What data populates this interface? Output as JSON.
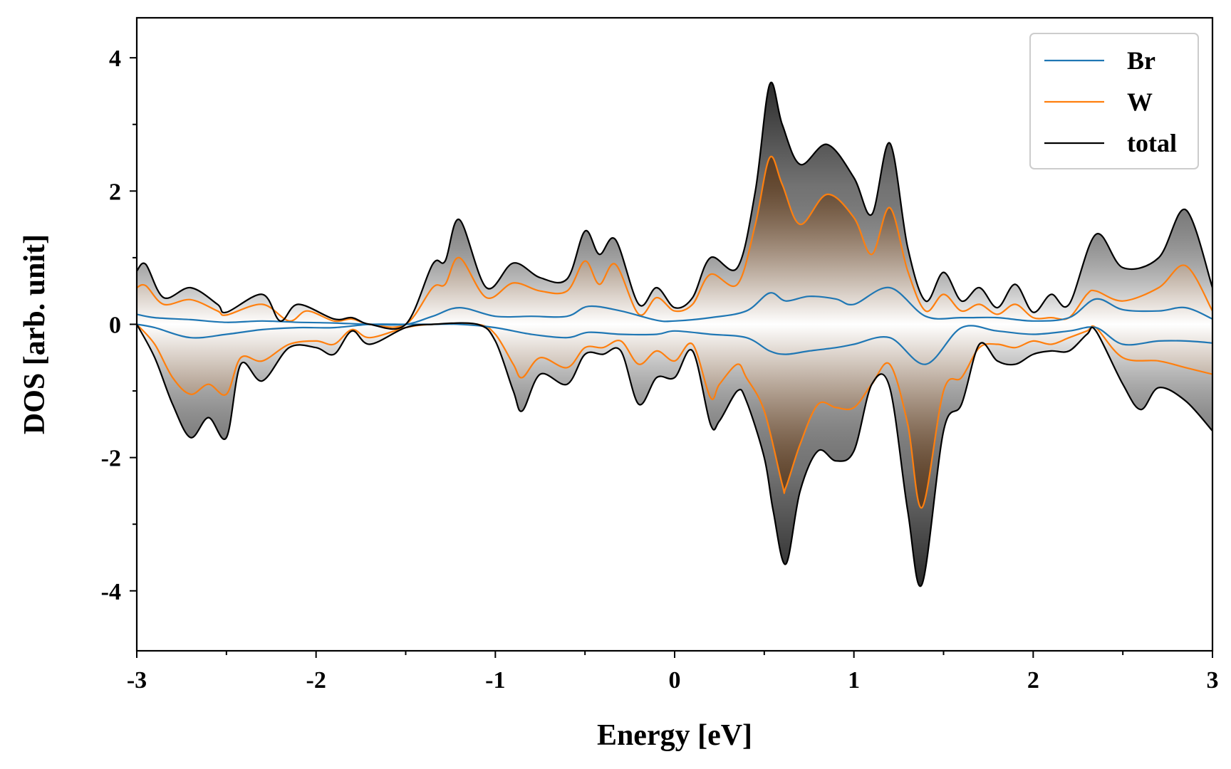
{
  "chart_data": {
    "type": "line",
    "title": "",
    "xlabel": "Energy [eV]",
    "ylabel": "DOS [arb. unit]",
    "xlim": [
      -3,
      3
    ],
    "ylim": [
      -4.9,
      4.6
    ],
    "xticks": [
      -3,
      -2,
      -1,
      0,
      1,
      2,
      3
    ],
    "yticks": [
      -4,
      -2,
      0,
      2,
      4
    ],
    "xtick_labels": [
      "-3",
      "-2",
      "-1",
      "0",
      "1",
      "2",
      "3"
    ],
    "ytick_labels": [
      "-4",
      "-2",
      "0",
      "2",
      "4"
    ],
    "grid": false,
    "legend_position": "top-right",
    "legend": [
      "Br",
      "W",
      "total"
    ],
    "colors": {
      "Br": "#1f77b4",
      "W": "#ff7f0e",
      "total": "#000000",
      "W_fill_dark": "#5a2a00",
      "total_fill_dark": "#000000"
    },
    "series": [
      {
        "name": "Br",
        "spin": "up",
        "x": [
          -3,
          -2.9,
          -2.7,
          -2.5,
          -2.3,
          -2.1,
          -1.9,
          -1.7,
          -1.5,
          -1.35,
          -1.2,
          -1.0,
          -0.8,
          -0.6,
          -0.48,
          -0.3,
          -0.1,
          0,
          0.2,
          0.4,
          0.53,
          0.62,
          0.75,
          0.9,
          1.0,
          1.2,
          1.4,
          1.6,
          1.8,
          2.0,
          2.2,
          2.35,
          2.5,
          2.7,
          2.85,
          3.0
        ],
        "y": [
          0.15,
          0.1,
          0.07,
          0.03,
          0.05,
          0.03,
          0.02,
          0.0,
          0.0,
          0.12,
          0.25,
          0.12,
          0.12,
          0.12,
          0.27,
          0.2,
          0.06,
          0.05,
          0.1,
          0.2,
          0.47,
          0.35,
          0.42,
          0.38,
          0.3,
          0.55,
          0.12,
          0.1,
          0.1,
          0.05,
          0.1,
          0.38,
          0.22,
          0.2,
          0.25,
          0.08
        ]
      },
      {
        "name": "Br",
        "spin": "down",
        "x": [
          -3,
          -2.9,
          -2.7,
          -2.5,
          -2.3,
          -2.1,
          -1.9,
          -1.7,
          -1.5,
          -1.35,
          -1.2,
          -1.0,
          -0.8,
          -0.6,
          -0.48,
          -0.3,
          -0.1,
          0,
          0.2,
          0.4,
          0.53,
          0.62,
          0.75,
          0.9,
          1.0,
          1.2,
          1.4,
          1.6,
          1.8,
          2.0,
          2.2,
          2.35,
          2.5,
          2.7,
          2.85,
          3.0
        ],
        "y": [
          0.0,
          -0.05,
          -0.2,
          -0.15,
          -0.08,
          -0.05,
          -0.05,
          0.0,
          0.0,
          0.0,
          0.0,
          -0.05,
          -0.15,
          -0.2,
          -0.12,
          -0.15,
          -0.15,
          -0.1,
          -0.15,
          -0.2,
          -0.4,
          -0.45,
          -0.4,
          -0.35,
          -0.3,
          -0.2,
          -0.6,
          -0.05,
          -0.1,
          -0.15,
          -0.1,
          -0.05,
          -0.3,
          -0.25,
          -0.25,
          -0.28
        ]
      },
      {
        "name": "W",
        "spin": "up",
        "x": [
          -3,
          -2.95,
          -2.85,
          -2.7,
          -2.55,
          -2.5,
          -2.3,
          -2.15,
          -2.05,
          -1.9,
          -1.8,
          -1.7,
          -1.5,
          -1.35,
          -1.28,
          -1.2,
          -1.05,
          -0.9,
          -0.75,
          -0.6,
          -0.5,
          -0.42,
          -0.33,
          -0.2,
          -0.1,
          0.0,
          0.1,
          0.2,
          0.35,
          0.45,
          0.53,
          0.6,
          0.7,
          0.85,
          1.0,
          1.1,
          1.2,
          1.3,
          1.4,
          1.5,
          1.6,
          1.7,
          1.8,
          1.9,
          2.0,
          2.1,
          2.2,
          2.3,
          2.35,
          2.5,
          2.7,
          2.85,
          3.0
        ],
        "y": [
          0.55,
          0.58,
          0.3,
          0.37,
          0.2,
          0.14,
          0.3,
          0.05,
          0.2,
          0.05,
          0.08,
          0.0,
          0.0,
          0.55,
          0.6,
          1.0,
          0.4,
          0.62,
          0.5,
          0.5,
          0.95,
          0.6,
          0.9,
          0.15,
          0.4,
          0.2,
          0.3,
          0.75,
          0.6,
          1.5,
          2.5,
          2.1,
          1.5,
          1.95,
          1.6,
          1.05,
          1.75,
          0.8,
          0.2,
          0.45,
          0.2,
          0.3,
          0.15,
          0.3,
          0.1,
          0.1,
          0.1,
          0.45,
          0.5,
          0.35,
          0.55,
          0.88,
          0.2
        ]
      },
      {
        "name": "W",
        "spin": "down",
        "x": [
          -3,
          -2.9,
          -2.8,
          -2.7,
          -2.6,
          -2.5,
          -2.42,
          -2.3,
          -2.15,
          -2.0,
          -1.9,
          -1.8,
          -1.7,
          -1.5,
          -1.35,
          -1.1,
          -1.0,
          -0.9,
          -0.85,
          -0.75,
          -0.6,
          -0.5,
          -0.4,
          -0.3,
          -0.2,
          -0.1,
          0.0,
          0.1,
          0.2,
          0.25,
          0.35,
          0.4,
          0.5,
          0.6,
          0.62,
          0.7,
          0.8,
          0.9,
          1.0,
          1.1,
          1.2,
          1.3,
          1.38,
          1.5,
          1.6,
          1.7,
          1.8,
          1.9,
          2.0,
          2.1,
          2.2,
          2.3,
          2.35,
          2.5,
          2.7,
          2.85,
          3.0
        ],
        "y": [
          0.0,
          -0.3,
          -0.8,
          -1.05,
          -0.9,
          -1.05,
          -0.5,
          -0.55,
          -0.3,
          -0.25,
          -0.3,
          -0.08,
          -0.2,
          -0.05,
          0.0,
          0.0,
          -0.15,
          -0.6,
          -0.8,
          -0.5,
          -0.65,
          -0.35,
          -0.35,
          -0.25,
          -0.6,
          -0.4,
          -0.55,
          -0.3,
          -1.1,
          -0.9,
          -0.6,
          -0.8,
          -1.3,
          -2.4,
          -2.45,
          -1.8,
          -1.2,
          -1.25,
          -1.25,
          -0.9,
          -0.6,
          -1.5,
          -2.75,
          -1.0,
          -0.8,
          -0.35,
          -0.3,
          -0.35,
          -0.25,
          -0.3,
          -0.2,
          -0.1,
          -0.05,
          -0.5,
          -0.55,
          -0.65,
          -0.75
        ]
      },
      {
        "name": "total",
        "spin": "up",
        "x": [
          -3,
          -2.95,
          -2.85,
          -2.7,
          -2.55,
          -2.5,
          -2.3,
          -2.2,
          -2.1,
          -1.9,
          -1.8,
          -1.7,
          -1.5,
          -1.35,
          -1.28,
          -1.2,
          -1.05,
          -0.9,
          -0.75,
          -0.6,
          -0.5,
          -0.42,
          -0.33,
          -0.2,
          -0.1,
          0.0,
          0.1,
          0.2,
          0.35,
          0.45,
          0.53,
          0.6,
          0.7,
          0.85,
          1.0,
          1.1,
          1.2,
          1.3,
          1.4,
          1.5,
          1.6,
          1.7,
          1.8,
          1.9,
          2.0,
          2.1,
          2.2,
          2.35,
          2.5,
          2.7,
          2.85,
          3.0
        ],
        "y": [
          0.8,
          0.9,
          0.4,
          0.55,
          0.3,
          0.18,
          0.45,
          0.05,
          0.3,
          0.08,
          0.1,
          0.0,
          0.0,
          0.9,
          0.95,
          1.57,
          0.55,
          0.92,
          0.7,
          0.68,
          1.4,
          1.05,
          1.27,
          0.3,
          0.55,
          0.25,
          0.4,
          1.0,
          0.85,
          2.0,
          3.6,
          3.0,
          2.4,
          2.7,
          2.2,
          1.65,
          2.72,
          1.15,
          0.35,
          0.78,
          0.35,
          0.55,
          0.25,
          0.6,
          0.18,
          0.45,
          0.3,
          1.35,
          0.85,
          1.0,
          1.72,
          0.55
        ]
      },
      {
        "name": "total",
        "spin": "down",
        "x": [
          -3,
          -2.9,
          -2.8,
          -2.7,
          -2.6,
          -2.5,
          -2.42,
          -2.3,
          -2.15,
          -2.0,
          -1.9,
          -1.8,
          -1.7,
          -1.5,
          -1.35,
          -1.1,
          -1.0,
          -0.9,
          -0.85,
          -0.75,
          -0.6,
          -0.5,
          -0.4,
          -0.3,
          -0.2,
          -0.1,
          0.0,
          0.1,
          0.2,
          0.25,
          0.35,
          0.4,
          0.5,
          0.55,
          0.62,
          0.7,
          0.8,
          0.9,
          1.0,
          1.1,
          1.2,
          1.3,
          1.38,
          1.5,
          1.6,
          1.7,
          1.8,
          1.9,
          2.0,
          2.1,
          2.2,
          2.3,
          2.35,
          2.5,
          2.6,
          2.7,
          2.85,
          3.0
        ],
        "y": [
          0.0,
          -0.5,
          -1.2,
          -1.7,
          -1.4,
          -1.7,
          -0.6,
          -0.85,
          -0.35,
          -0.35,
          -0.45,
          -0.1,
          -0.3,
          -0.05,
          0.0,
          0.0,
          -0.25,
          -1.0,
          -1.3,
          -0.75,
          -0.9,
          -0.45,
          -0.45,
          -0.4,
          -1.2,
          -0.8,
          -0.8,
          -0.4,
          -1.5,
          -1.45,
          -1.0,
          -1.15,
          -2.0,
          -2.8,
          -3.6,
          -2.5,
          -1.9,
          -2.05,
          -1.9,
          -0.9,
          -0.95,
          -2.8,
          -3.9,
          -1.6,
          -1.2,
          -0.3,
          -0.55,
          -0.6,
          -0.45,
          -0.4,
          -0.4,
          -0.15,
          -0.1,
          -0.9,
          -1.28,
          -0.95,
          -1.15,
          -1.6
        ]
      }
    ]
  }
}
